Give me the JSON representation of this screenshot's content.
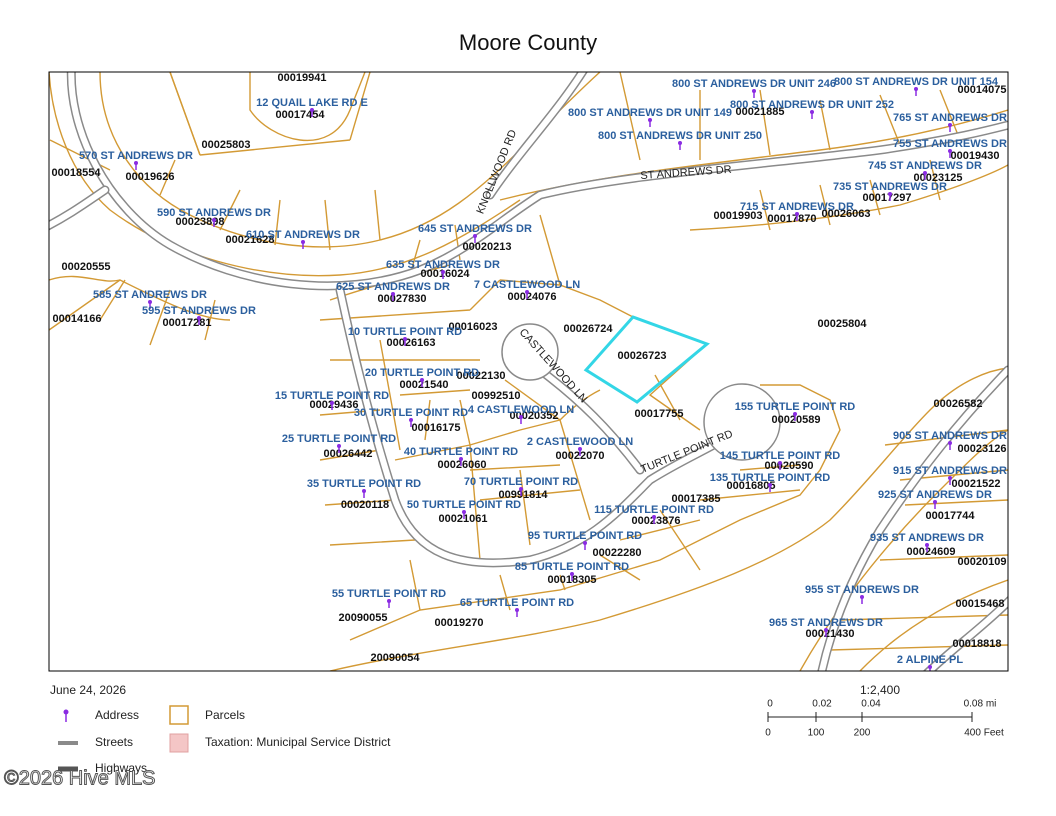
{
  "title": "Moore County",
  "map": {
    "streets": [
      "ST ANDREWS DR",
      "KNOLLWOOD RD",
      "CASTLEWOOD LN",
      "TURTLE POINT RD"
    ],
    "addresses": [
      "12 QUAIL LAKE RD E",
      "570 ST ANDREWS DR",
      "590 ST ANDREWS DR",
      "610 ST ANDREWS DR",
      "585 ST ANDREWS DR",
      "595 ST ANDREWS DR",
      "645 ST ANDREWS DR",
      "635 ST ANDREWS DR",
      "625 ST ANDREWS DR",
      "7 CASTLEWOOD LN",
      "10 TURTLE POINT RD",
      "20 TURTLE POINT RD",
      "15 TURTLE POINT RD",
      "30 TURTLE POINT RD",
      "4 CASTLEWOOD LN",
      "25 TURTLE POINT RD",
      "2 CASTLEWOOD LN",
      "40 TURTLE POINT RD",
      "35 TURTLE POINT RD",
      "70 TURTLE POINT RD",
      "50 TURTLE POINT RD",
      "115 TURTLE POINT RD",
      "95 TURTLE POINT RD",
      "85 TURTLE POINT RD",
      "55 TURTLE POINT RD",
      "65 TURTLE POINT RD",
      "155 TURTLE POINT RD",
      "145 TURTLE POINT RD",
      "135 TURTLE POINT RD",
      "800 ST ANDREWS DR UNIT 246",
      "800 ST ANDREWS DR UNIT 154",
      "800 ST ANDREWS DR UNIT 252",
      "800 ST ANDREWS DR UNIT 149",
      "800 ST ANDREWS DR UNIT 250",
      "765 ST ANDREWS DR",
      "755 ST ANDREWS DR",
      "745 ST ANDREWS DR",
      "735 ST ANDREWS DR",
      "715 ST ANDREWS DR",
      "905 ST ANDREWS DR",
      "915 ST ANDREWS DR",
      "925 ST ANDREWS DR",
      "935 ST ANDREWS DR",
      "955 ST ANDREWS DR",
      "965 ST ANDREWS DR",
      "2 ALPINE PL"
    ],
    "parcels": [
      "00019941",
      "00017454",
      "00025803",
      "00018554",
      "00019626",
      "00023898",
      "00021628",
      "00020213",
      "00016024",
      "00024076",
      "00027830",
      "00020555",
      "00014166",
      "00017281",
      "00016023",
      "00026724",
      "00025804",
      "00026723",
      "00026163",
      "00021540",
      "00022130",
      "00992510",
      "00020352",
      "00029436",
      "00016175",
      "00017755",
      "00020589",
      "00026582",
      "00026442",
      "00026060",
      "00022070",
      "00020590",
      "00016805",
      "00017385",
      "00020118",
      "00991814",
      "00021061",
      "00023876",
      "00022280",
      "00018305",
      "20090055",
      "00019270",
      "20090054",
      "00017744",
      "00024609",
      "00021430",
      "00015468",
      "00018818",
      "00019903",
      "00017870",
      "00026063",
      "00017297",
      "00023125",
      "00019430",
      "00021885",
      "00014075",
      "00021522",
      "00023126",
      "00020109"
    ]
  },
  "footer": {
    "date": "June 24, 2026",
    "scale_ratio": "1:2,400",
    "scale_miles": [
      "0",
      "0.02",
      "0.04",
      "0.08 mi"
    ],
    "scale_feet": [
      "0",
      "100",
      "200",
      "400 Feet"
    ]
  },
  "legend": [
    "Address",
    "Parcels",
    "Streets",
    "Taxation: Municipal Service District",
    "Highways"
  ],
  "watermark": "©2026 Hive MLS"
}
